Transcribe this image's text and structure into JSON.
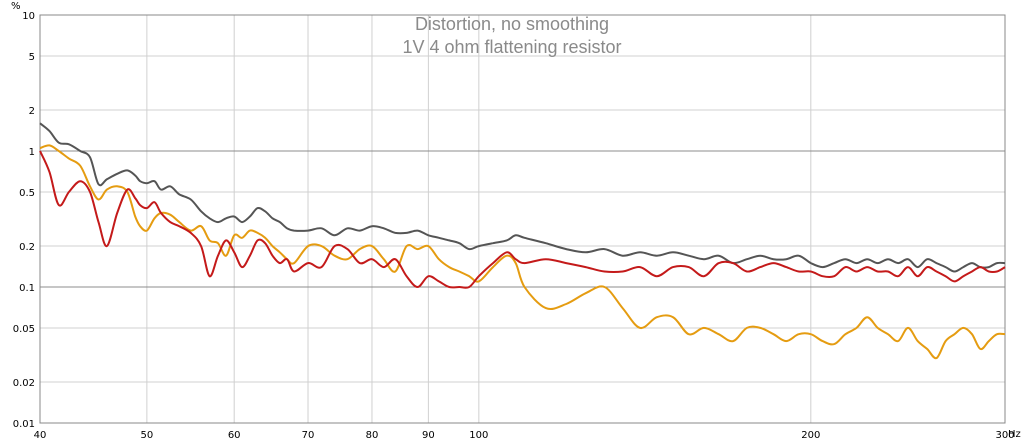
{
  "chart_data": {
    "type": "line",
    "title": "Distortion, no smoothing",
    "subtitle": "1V 4 ohm flattening resistor",
    "y_unit": "%",
    "x_unit": "Hz",
    "x_scale": "log",
    "y_scale": "log",
    "xlim": [
      40,
      300
    ],
    "ylim": [
      0.01,
      10
    ],
    "x_ticks": [
      40,
      50,
      60,
      70,
      80,
      90,
      100,
      200,
      300
    ],
    "x_tick_labels": [
      "40",
      "50",
      "60",
      "70",
      "80",
      "90",
      "100",
      "200",
      "300"
    ],
    "y_ticks": [
      0.01,
      0.02,
      0.05,
      0.1,
      0.2,
      0.5,
      1,
      2,
      5,
      10
    ],
    "y_tick_labels": [
      "0.01",
      "0.02",
      "0.05",
      "0.1",
      "0.2",
      "0.5",
      "1",
      "2",
      "5",
      "10"
    ],
    "grid": true,
    "series": [
      {
        "color": "#555555",
        "points": [
          [
            40,
            1.6
          ],
          [
            40.8,
            1.4
          ],
          [
            41.6,
            1.15
          ],
          [
            42.5,
            1.12
          ],
          [
            43.5,
            1.0
          ],
          [
            44.4,
            0.9
          ],
          [
            45.2,
            0.57
          ],
          [
            46,
            0.62
          ],
          [
            47,
            0.68
          ],
          [
            48,
            0.72
          ],
          [
            48.8,
            0.66
          ],
          [
            49.3,
            0.6
          ],
          [
            50,
            0.58
          ],
          [
            50.8,
            0.6
          ],
          [
            51.5,
            0.52
          ],
          [
            52.5,
            0.55
          ],
          [
            53.5,
            0.48
          ],
          [
            54.8,
            0.44
          ],
          [
            56,
            0.36
          ],
          [
            57,
            0.32
          ],
          [
            58,
            0.3
          ],
          [
            59,
            0.32
          ],
          [
            60,
            0.33
          ],
          [
            61,
            0.3
          ],
          [
            62,
            0.33
          ],
          [
            63,
            0.38
          ],
          [
            64,
            0.36
          ],
          [
            65,
            0.32
          ],
          [
            66,
            0.3
          ],
          [
            67,
            0.27
          ],
          [
            68,
            0.26
          ],
          [
            70,
            0.26
          ],
          [
            72,
            0.27
          ],
          [
            74,
            0.24
          ],
          [
            76,
            0.27
          ],
          [
            78,
            0.26
          ],
          [
            80,
            0.28
          ],
          [
            82,
            0.27
          ],
          [
            84,
            0.25
          ],
          [
            86,
            0.25
          ],
          [
            88,
            0.26
          ],
          [
            90,
            0.24
          ],
          [
            92,
            0.23
          ],
          [
            94,
            0.22
          ],
          [
            96,
            0.21
          ],
          [
            98,
            0.19
          ],
          [
            100,
            0.2
          ],
          [
            103,
            0.21
          ],
          [
            106,
            0.22
          ],
          [
            108,
            0.24
          ],
          [
            110,
            0.23
          ],
          [
            115,
            0.21
          ],
          [
            120,
            0.19
          ],
          [
            125,
            0.18
          ],
          [
            130,
            0.19
          ],
          [
            135,
            0.17
          ],
          [
            140,
            0.18
          ],
          [
            145,
            0.17
          ],
          [
            150,
            0.18
          ],
          [
            155,
            0.17
          ],
          [
            160,
            0.16
          ],
          [
            165,
            0.17
          ],
          [
            170,
            0.15
          ],
          [
            175,
            0.16
          ],
          [
            180,
            0.17
          ],
          [
            185,
            0.16
          ],
          [
            190,
            0.16
          ],
          [
            195,
            0.17
          ],
          [
            200,
            0.15
          ],
          [
            205,
            0.14
          ],
          [
            210,
            0.15
          ],
          [
            215,
            0.16
          ],
          [
            220,
            0.15
          ],
          [
            225,
            0.16
          ],
          [
            230,
            0.15
          ],
          [
            235,
            0.16
          ],
          [
            240,
            0.15
          ],
          [
            245,
            0.16
          ],
          [
            250,
            0.14
          ],
          [
            255,
            0.16
          ],
          [
            260,
            0.15
          ],
          [
            265,
            0.14
          ],
          [
            270,
            0.13
          ],
          [
            275,
            0.14
          ],
          [
            280,
            0.15
          ],
          [
            285,
            0.14
          ],
          [
            290,
            0.14
          ],
          [
            295,
            0.15
          ],
          [
            300,
            0.15
          ]
        ]
      },
      {
        "color": "#e59c11",
        "points": [
          [
            40,
            1.05
          ],
          [
            40.8,
            1.1
          ],
          [
            41.6,
            1.0
          ],
          [
            42.5,
            0.88
          ],
          [
            43.5,
            0.78
          ],
          [
            44.4,
            0.55
          ],
          [
            45.2,
            0.44
          ],
          [
            46,
            0.52
          ],
          [
            47,
            0.55
          ],
          [
            48,
            0.5
          ],
          [
            48.8,
            0.33
          ],
          [
            49.3,
            0.28
          ],
          [
            50,
            0.26
          ],
          [
            50.8,
            0.32
          ],
          [
            51.5,
            0.35
          ],
          [
            52.5,
            0.34
          ],
          [
            53.5,
            0.3
          ],
          [
            54.8,
            0.26
          ],
          [
            56,
            0.28
          ],
          [
            57,
            0.22
          ],
          [
            58,
            0.21
          ],
          [
            59,
            0.17
          ],
          [
            60,
            0.24
          ],
          [
            61,
            0.23
          ],
          [
            62,
            0.26
          ],
          [
            63,
            0.25
          ],
          [
            64,
            0.23
          ],
          [
            65,
            0.2
          ],
          [
            66,
            0.18
          ],
          [
            67,
            0.16
          ],
          [
            68,
            0.15
          ],
          [
            70,
            0.2
          ],
          [
            72,
            0.2
          ],
          [
            74,
            0.17
          ],
          [
            76,
            0.16
          ],
          [
            78,
            0.19
          ],
          [
            80,
            0.2
          ],
          [
            82,
            0.16
          ],
          [
            84,
            0.13
          ],
          [
            86,
            0.2
          ],
          [
            88,
            0.19
          ],
          [
            90,
            0.2
          ],
          [
            92,
            0.16
          ],
          [
            94,
            0.14
          ],
          [
            96,
            0.13
          ],
          [
            98,
            0.12
          ],
          [
            100,
            0.11
          ],
          [
            103,
            0.14
          ],
          [
            106,
            0.17
          ],
          [
            108,
            0.15
          ],
          [
            110,
            0.1
          ],
          [
            115,
            0.07
          ],
          [
            120,
            0.075
          ],
          [
            125,
            0.09
          ],
          [
            130,
            0.1
          ],
          [
            135,
            0.07
          ],
          [
            140,
            0.05
          ],
          [
            145,
            0.06
          ],
          [
            150,
            0.06
          ],
          [
            155,
            0.045
          ],
          [
            160,
            0.05
          ],
          [
            165,
            0.045
          ],
          [
            170,
            0.04
          ],
          [
            175,
            0.05
          ],
          [
            180,
            0.05
          ],
          [
            185,
            0.045
          ],
          [
            190,
            0.04
          ],
          [
            195,
            0.045
          ],
          [
            200,
            0.045
          ],
          [
            205,
            0.04
          ],
          [
            210,
            0.038
          ],
          [
            215,
            0.045
          ],
          [
            220,
            0.05
          ],
          [
            225,
            0.06
          ],
          [
            230,
            0.05
          ],
          [
            235,
            0.045
          ],
          [
            240,
            0.04
          ],
          [
            245,
            0.05
          ],
          [
            250,
            0.04
          ],
          [
            255,
            0.035
          ],
          [
            260,
            0.03
          ],
          [
            265,
            0.04
          ],
          [
            270,
            0.045
          ],
          [
            275,
            0.05
          ],
          [
            280,
            0.045
          ],
          [
            285,
            0.035
          ],
          [
            290,
            0.04
          ],
          [
            295,
            0.045
          ],
          [
            300,
            0.045
          ]
        ]
      },
      {
        "color": "#c41a1a",
        "points": [
          [
            40,
            1.0
          ],
          [
            40.8,
            0.7
          ],
          [
            41.6,
            0.4
          ],
          [
            42.5,
            0.5
          ],
          [
            43.5,
            0.6
          ],
          [
            44.4,
            0.5
          ],
          [
            45.2,
            0.3
          ],
          [
            46,
            0.2
          ],
          [
            47,
            0.35
          ],
          [
            48,
            0.52
          ],
          [
            48.8,
            0.45
          ],
          [
            49.3,
            0.4
          ],
          [
            50,
            0.38
          ],
          [
            50.8,
            0.42
          ],
          [
            51.5,
            0.35
          ],
          [
            52.5,
            0.3
          ],
          [
            53.5,
            0.28
          ],
          [
            54.8,
            0.25
          ],
          [
            56,
            0.2
          ],
          [
            57,
            0.12
          ],
          [
            58,
            0.17
          ],
          [
            59,
            0.22
          ],
          [
            60,
            0.18
          ],
          [
            61,
            0.14
          ],
          [
            62,
            0.17
          ],
          [
            63,
            0.22
          ],
          [
            64,
            0.21
          ],
          [
            65,
            0.17
          ],
          [
            66,
            0.15
          ],
          [
            67,
            0.16
          ],
          [
            68,
            0.13
          ],
          [
            70,
            0.15
          ],
          [
            72,
            0.14
          ],
          [
            74,
            0.2
          ],
          [
            76,
            0.19
          ],
          [
            78,
            0.15
          ],
          [
            80,
            0.16
          ],
          [
            82,
            0.14
          ],
          [
            84,
            0.16
          ],
          [
            86,
            0.12
          ],
          [
            88,
            0.1
          ],
          [
            90,
            0.12
          ],
          [
            92,
            0.11
          ],
          [
            94,
            0.1
          ],
          [
            96,
            0.1
          ],
          [
            98,
            0.1
          ],
          [
            100,
            0.12
          ],
          [
            103,
            0.15
          ],
          [
            106,
            0.18
          ],
          [
            108,
            0.16
          ],
          [
            110,
            0.15
          ],
          [
            115,
            0.16
          ],
          [
            120,
            0.15
          ],
          [
            125,
            0.14
          ],
          [
            130,
            0.13
          ],
          [
            135,
            0.13
          ],
          [
            140,
            0.14
          ],
          [
            145,
            0.12
          ],
          [
            150,
            0.14
          ],
          [
            155,
            0.14
          ],
          [
            160,
            0.12
          ],
          [
            165,
            0.15
          ],
          [
            170,
            0.15
          ],
          [
            175,
            0.13
          ],
          [
            180,
            0.14
          ],
          [
            185,
            0.15
          ],
          [
            190,
            0.14
          ],
          [
            195,
            0.13
          ],
          [
            200,
            0.13
          ],
          [
            205,
            0.12
          ],
          [
            210,
            0.12
          ],
          [
            215,
            0.14
          ],
          [
            220,
            0.13
          ],
          [
            225,
            0.14
          ],
          [
            230,
            0.13
          ],
          [
            235,
            0.13
          ],
          [
            240,
            0.12
          ],
          [
            245,
            0.14
          ],
          [
            250,
            0.12
          ],
          [
            255,
            0.14
          ],
          [
            260,
            0.13
          ],
          [
            265,
            0.12
          ],
          [
            270,
            0.11
          ],
          [
            275,
            0.12
          ],
          [
            280,
            0.13
          ],
          [
            285,
            0.14
          ],
          [
            290,
            0.13
          ],
          [
            295,
            0.13
          ],
          [
            300,
            0.14
          ]
        ]
      }
    ]
  }
}
